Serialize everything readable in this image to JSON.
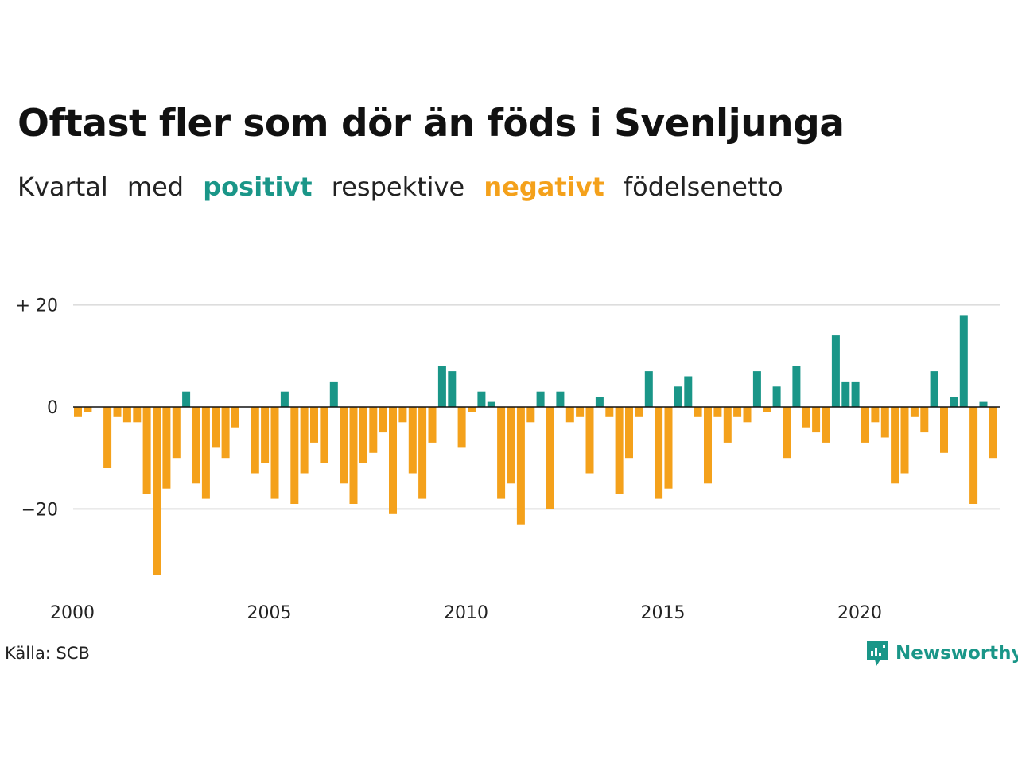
{
  "title": "Oftast fler som dör än föds i Svenljunga",
  "subtitle": {
    "part1": "Kvartal",
    "part2": "med",
    "positive_word": "positivt",
    "part3": "respektive",
    "negative_word": "negativt",
    "part4": "födelsenetto"
  },
  "source": "Källa: SCB",
  "logo": {
    "text": "Newsworthy",
    "icon": "newsworthy-logo-icon"
  },
  "colors": {
    "positive": "#1a9688",
    "negative": "#f4a11b",
    "grid": "#dddddd",
    "zero": "#111111"
  },
  "chart_data": {
    "type": "bar",
    "title": "Oftast fler som dör än föds i Svenljunga",
    "xlabel": "",
    "ylabel": "",
    "x_start_year": 2000,
    "x_unit": "quarter",
    "xlim": [
      2000,
      2023.75
    ],
    "ylim": [
      -35,
      22
    ],
    "yticks": [
      20,
      0,
      -20
    ],
    "ytick_labels": [
      "+ 20",
      "0",
      "−20"
    ],
    "xticks": [
      2000,
      2005,
      2010,
      2015,
      2020
    ],
    "xtick_labels": [
      "2000",
      "2005",
      "2010",
      "2015",
      "2020"
    ],
    "grid": true,
    "values": [
      -2,
      -1,
      0,
      -12,
      -2,
      -3,
      -3,
      -17,
      -33,
      -16,
      -10,
      3,
      -15,
      -18,
      -8,
      -10,
      -4,
      0,
      -13,
      -11,
      -18,
      3,
      -19,
      -13,
      -7,
      -11,
      5,
      -15,
      -19,
      -11,
      -9,
      -5,
      -21,
      -3,
      -13,
      -18,
      -7,
      8,
      7,
      -8,
      -1,
      3,
      1,
      -18,
      -15,
      -23,
      -3,
      3,
      -20,
      3,
      -3,
      -2,
      -13,
      2,
      -2,
      -17,
      -10,
      -2,
      7,
      -18,
      -16,
      4,
      6,
      -2,
      -15,
      -2,
      -7,
      -2,
      -3,
      7,
      -1,
      4,
      -10,
      8,
      -4,
      -5,
      -7,
      14,
      5,
      5,
      -7,
      -3,
      -6,
      -15,
      -13,
      -2,
      -5,
      7,
      -9,
      2,
      18,
      -19,
      1,
      -10
    ]
  }
}
